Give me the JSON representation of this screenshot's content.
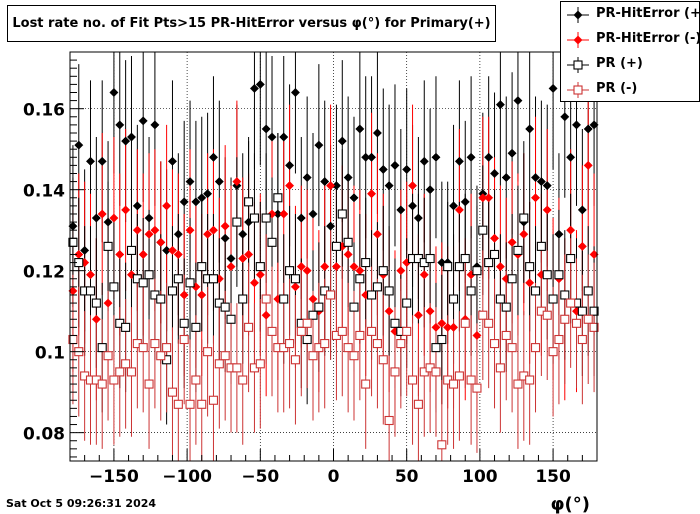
{
  "title": "Lost rate no. of Fit Pts>15 PR-HitError versus φ(°) for Primary(+)",
  "timestamp": "Sat Oct  5 09:26:31 2024",
  "colors": {
    "black": "#000000",
    "red": "#ff0000",
    "darkred": "#cc3333"
  },
  "legend": [
    {
      "label": "PR-HitError (+)",
      "marker": "filled-diamond",
      "color": "#000000"
    },
    {
      "label": "PR-HitError (-)",
      "marker": "filled-diamond",
      "color": "#ff0000"
    },
    {
      "label": "PR (+)",
      "marker": "open-square",
      "color": "#000000"
    },
    {
      "label": "PR (-)",
      "marker": "open-square",
      "color": "#cc3333"
    }
  ],
  "chart_data": {
    "type": "scatter",
    "title": "Lost rate no. of Fit Pts>15 PR-HitError versus φ(°) for Primary(+)",
    "xlabel": "φ(°)",
    "ylabel": "",
    "xlim": [
      -180,
      180
    ],
    "ylim": [
      0.073,
      0.174
    ],
    "xticks": [
      -150,
      -100,
      -50,
      0,
      50,
      100,
      150
    ],
    "xtick_labels": [
      "−150",
      "−100",
      "−50",
      "0",
      "50",
      "100",
      "150"
    ],
    "yticks": [
      0.08,
      0.1,
      0.12,
      0.14,
      0.16
    ],
    "ytick_labels": [
      "0.08",
      "0.1",
      "0.12",
      "0.14",
      "0.16"
    ],
    "grid": true,
    "legend_position": "top-right",
    "x": [
      -178,
      -174,
      -170,
      -166,
      -162,
      -158,
      -154,
      -150,
      -146,
      -142,
      -138,
      -134,
      -130,
      -126,
      -122,
      -118,
      -114,
      -110,
      -106,
      -102,
      -98,
      -94,
      -90,
      -86,
      -82,
      -78,
      -74,
      -70,
      -66,
      -62,
      -58,
      -54,
      -50,
      -46,
      -42,
      -38,
      -34,
      -30,
      -26,
      -22,
      -18,
      -14,
      -10,
      -6,
      -2,
      2,
      6,
      10,
      14,
      18,
      22,
      26,
      30,
      34,
      38,
      42,
      46,
      50,
      54,
      58,
      62,
      66,
      70,
      74,
      78,
      82,
      86,
      90,
      94,
      98,
      102,
      106,
      110,
      114,
      118,
      122,
      126,
      130,
      134,
      138,
      142,
      146,
      150,
      154,
      158,
      162,
      166,
      170,
      174,
      178
    ],
    "series": [
      {
        "name": "PR-HitError (+)",
        "marker": "filled-diamond",
        "color": "#000000",
        "values": [
          0.131,
          0.151,
          0.125,
          0.147,
          0.133,
          0.147,
          0.132,
          0.164,
          0.156,
          0.152,
          0.153,
          0.136,
          0.157,
          0.133,
          0.156,
          0.127,
          0.125,
          0.147,
          0.129,
          0.137,
          0.142,
          0.137,
          0.138,
          0.139,
          0.148,
          0.142,
          0.128,
          0.123,
          0.141,
          0.129,
          0.132,
          0.165,
          0.166,
          0.155,
          0.153,
          0.134,
          0.153,
          0.146,
          0.164,
          0.133,
          0.143,
          0.134,
          0.151,
          0.142,
          0.131,
          0.141,
          0.152,
          0.143,
          0.138,
          0.155,
          0.148,
          0.148,
          0.154,
          0.145,
          0.141,
          0.146,
          0.135,
          0.145,
          0.136,
          0.133,
          0.147,
          0.14,
          0.148,
          0.122,
          0.122,
          0.136,
          0.147,
          0.137,
          0.148,
          0.121,
          0.139,
          0.148,
          0.144,
          0.161,
          0.143,
          0.149,
          0.162,
          0.132,
          0.155,
          0.143,
          0.142,
          0.141,
          0.165,
          0.129,
          0.158,
          0.148,
          0.156,
          0.135,
          0.155,
          0.156
        ]
      },
      {
        "name": "PR-HitError (-)",
        "marker": "filled-diamond",
        "color": "#ff0000",
        "values": [
          0.115,
          0.124,
          0.122,
          0.119,
          0.108,
          0.134,
          0.112,
          0.133,
          0.124,
          0.135,
          0.119,
          0.13,
          0.124,
          0.129,
          0.13,
          0.127,
          0.136,
          0.125,
          0.124,
          0.114,
          0.13,
          0.116,
          0.114,
          0.129,
          0.13,
          0.118,
          0.131,
          0.121,
          0.142,
          0.123,
          0.124,
          0.117,
          0.119,
          0.109,
          0.134,
          0.113,
          0.134,
          0.141,
          0.116,
          0.121,
          0.12,
          0.113,
          0.11,
          0.121,
          0.141,
          0.121,
          0.126,
          0.124,
          0.121,
          0.12,
          0.114,
          0.139,
          0.129,
          0.119,
          0.11,
          0.105,
          0.12,
          0.122,
          0.141,
          0.109,
          0.119,
          0.11,
          0.106,
          0.107,
          0.106,
          0.106,
          0.135,
          0.108,
          0.119,
          0.104,
          0.138,
          0.138,
          0.128,
          0.121,
          0.118,
          0.127,
          0.124,
          0.129,
          0.117,
          0.138,
          0.119,
          0.135,
          0.113,
          0.118,
          0.108,
          0.13,
          0.11,
          0.126,
          0.146,
          0.124
        ]
      },
      {
        "name": "PR (+)",
        "marker": "open-square",
        "color": "#000000",
        "values": [
          0.127,
          0.122,
          0.115,
          0.115,
          0.112,
          0.101,
          0.126,
          0.116,
          0.107,
          0.106,
          0.125,
          0.118,
          0.117,
          0.119,
          0.114,
          0.113,
          0.098,
          0.115,
          0.118,
          0.107,
          0.117,
          0.106,
          0.121,
          0.118,
          0.118,
          0.112,
          0.111,
          0.108,
          0.132,
          0.113,
          0.137,
          0.133,
          0.121,
          0.133,
          0.127,
          0.138,
          0.113,
          0.12,
          0.118,
          0.107,
          0.103,
          0.109,
          0.111,
          0.115,
          0.114,
          0.126,
          0.134,
          0.127,
          0.111,
          0.118,
          0.122,
          0.114,
          0.116,
          0.12,
          0.115,
          0.107,
          0.105,
          0.112,
          0.123,
          0.123,
          0.122,
          0.123,
          0.101,
          0.103,
          0.121,
          0.113,
          0.121,
          0.123,
          0.115,
          0.12,
          0.13,
          0.122,
          0.124,
          0.113,
          0.111,
          0.118,
          0.125,
          0.133,
          0.121,
          0.115,
          0.126,
          0.119,
          0.113,
          0.119,
          0.114,
          0.123,
          0.112,
          0.11,
          0.115,
          0.11
        ]
      },
      {
        "name": "PR (-)",
        "marker": "open-square",
        "color": "#cc3333",
        "values": [
          0.103,
          0.1,
          0.094,
          0.093,
          0.093,
          0.092,
          0.099,
          0.093,
          0.095,
          0.097,
          0.095,
          0.102,
          0.101,
          0.092,
          0.102,
          0.099,
          0.101,
          0.09,
          0.087,
          0.103,
          0.087,
          0.093,
          0.087,
          0.1,
          0.088,
          0.097,
          0.099,
          0.096,
          0.096,
          0.093,
          0.106,
          0.096,
          0.097,
          0.113,
          0.105,
          0.101,
          0.101,
          0.102,
          0.098,
          0.105,
          0.107,
          0.099,
          0.101,
          0.102,
          0.114,
          0.104,
          0.105,
          0.101,
          0.099,
          0.104,
          0.092,
          0.105,
          0.102,
          0.098,
          0.083,
          0.095,
          0.102,
          0.105,
          0.093,
          0.087,
          0.095,
          0.096,
          0.095,
          0.077,
          0.093,
          0.092,
          0.094,
          0.107,
          0.093,
          0.091,
          0.109,
          0.107,
          0.102,
          0.096,
          0.104,
          0.101,
          0.092,
          0.094,
          0.093,
          0.101,
          0.11,
          0.109,
          0.1,
          0.103,
          0.108,
          0.112,
          0.107,
          0.103,
          0.108,
          0.106
        ]
      }
    ]
  }
}
